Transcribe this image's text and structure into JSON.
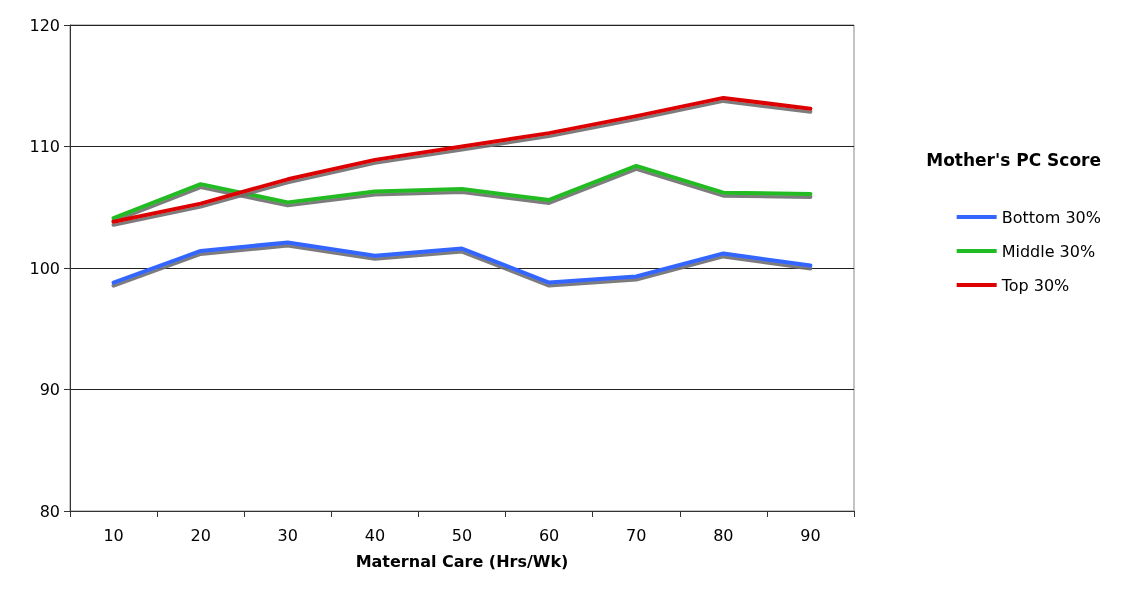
{
  "chart_data": {
    "type": "line",
    "xlabel": "Maternal Care (Hrs/Wk)",
    "legend_title": "Mother's PC Score",
    "categories": [
      "10",
      "20",
      "30",
      "40",
      "50",
      "60",
      "70",
      "80",
      "90"
    ],
    "series": [
      {
        "name": "Bottom 30%",
        "color": "#3366ff",
        "values": [
          98.8,
          101.4,
          102.1,
          101.0,
          101.6,
          98.8,
          99.3,
          101.2,
          100.2
        ]
      },
      {
        "name": "Middle 30%",
        "color": "#22bb22",
        "values": [
          104.1,
          106.9,
          105.4,
          106.3,
          106.5,
          105.6,
          108.4,
          106.2,
          106.1
        ]
      },
      {
        "name": "Top 30%",
        "color": "#dd0000",
        "values": [
          103.8,
          105.3,
          107.3,
          108.9,
          110.0,
          111.1,
          112.5,
          114.0,
          113.1
        ]
      }
    ],
    "ylim": [
      80,
      120
    ],
    "yticks": [
      80,
      90,
      100,
      110,
      120
    ],
    "grid": "y",
    "legend": "right",
    "marker": "none",
    "line_style": "solid"
  }
}
